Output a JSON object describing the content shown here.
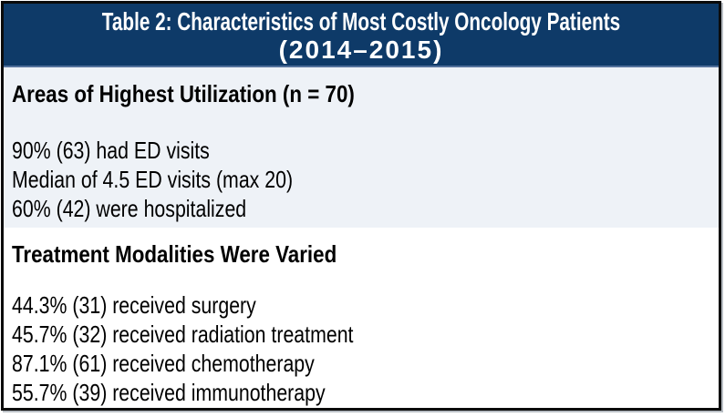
{
  "colors": {
    "header_bg": "#0e3a68",
    "header_text": "#ffffff",
    "header_underline": "#52719c",
    "section_alt_bg": "#eef2f7",
    "section_bg": "#ffffff",
    "border": "#0b0b0b",
    "body_text": "#000000"
  },
  "table": {
    "title_line1": "Table 2: Characteristics of Most Costly Oncology Patients",
    "title_line2": "(2014–2015)",
    "sections": [
      {
        "header": "Areas of Highest Utilization (n = 70)",
        "rows": [
          "90% (63) had ED visits",
          "Median of 4.5 ED visits (max 20)",
          "60% (42) were hospitalized"
        ]
      },
      {
        "header": "Treatment Modalities Were Varied",
        "rows": [
          "44.3% (31) received surgery",
          "45.7% (32) received radiation treatment",
          "87.1% (61) received chemotherapy",
          "55.7% (39) received immunotherapy"
        ]
      }
    ]
  }
}
